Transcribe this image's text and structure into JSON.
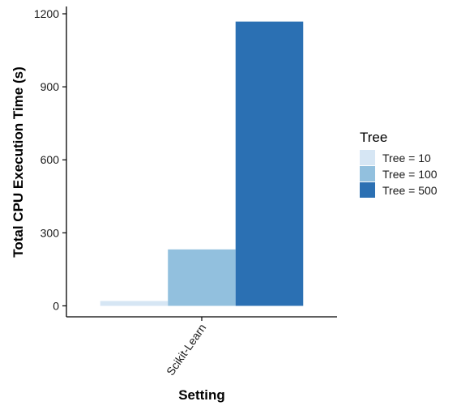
{
  "chart_data": {
    "type": "bar",
    "categories": [
      "Scikit-Learn"
    ],
    "series": [
      {
        "name": "Tree = 10",
        "values": [
          20
        ],
        "color": "#d6e6f4"
      },
      {
        "name": "Tree = 100",
        "values": [
          232
        ],
        "color": "#92c0de"
      },
      {
        "name": "Tree = 500",
        "values": [
          1168
        ],
        "color": "#2b70b3"
      }
    ],
    "xlabel": "Setting",
    "ylabel": "Total CPU Execution Time (s)",
    "ylim": [
      -45,
      1230
    ],
    "yticks": [
      0,
      300,
      600,
      900,
      1200
    ],
    "legend": {
      "title": "Tree",
      "placement": "right"
    },
    "grid": false
  }
}
